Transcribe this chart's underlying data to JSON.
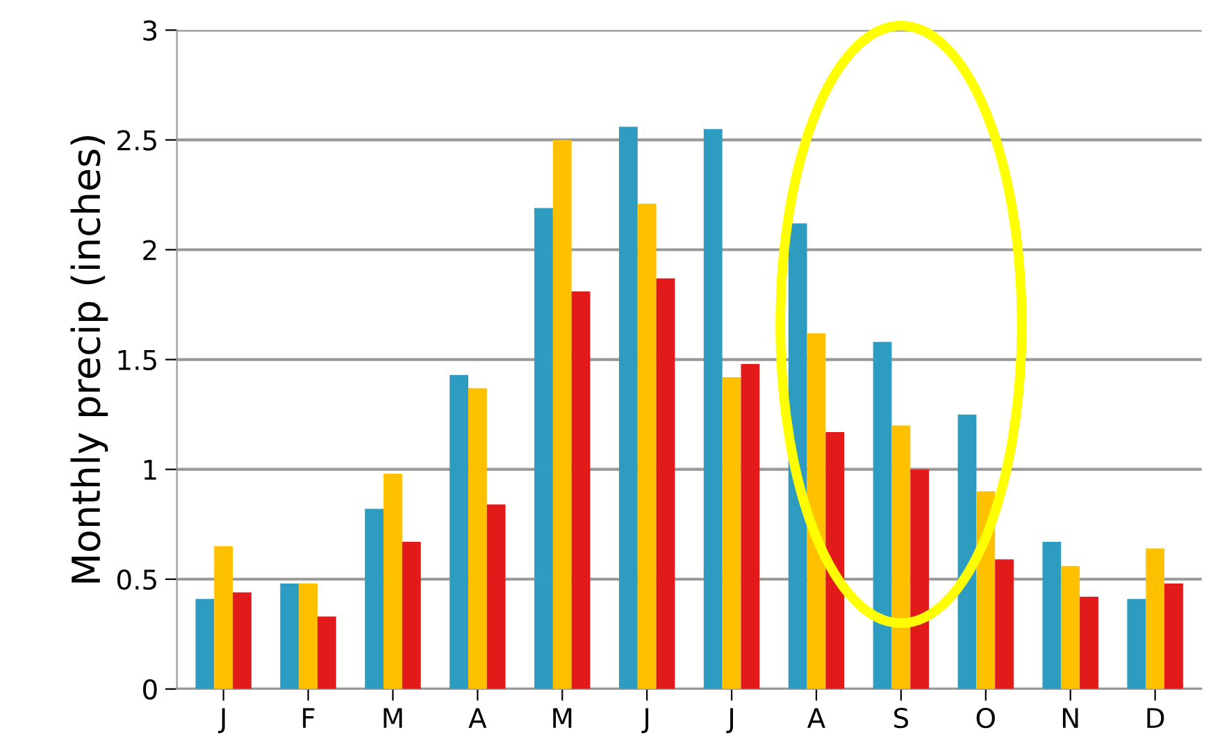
{
  "chart_data": {
    "type": "bar",
    "ylabel": "Monthly precip (inches)",
    "categories": [
      "J",
      "F",
      "M",
      "A",
      "M",
      "J",
      "J",
      "A",
      "S",
      "O",
      "N",
      "D"
    ],
    "series": [
      {
        "color": "#2e9bc0",
        "values": [
          0.41,
          0.48,
          0.82,
          1.43,
          2.19,
          2.56,
          2.55,
          2.12,
          1.58,
          1.25,
          0.67,
          0.41
        ]
      },
      {
        "color": "#ffc000",
        "values": [
          0.65,
          0.48,
          0.98,
          1.37,
          2.5,
          2.21,
          1.42,
          1.62,
          1.2,
          0.9,
          0.56,
          0.64
        ]
      },
      {
        "color": "#e21a1a",
        "values": [
          0.44,
          0.33,
          0.67,
          0.84,
          1.81,
          1.87,
          1.48,
          1.17,
          1.0,
          0.59,
          0.42,
          0.48
        ]
      }
    ],
    "ylim": [
      0,
      3
    ],
    "yticks": [
      0,
      0.5,
      1,
      1.5,
      2,
      2.5,
      3
    ],
    "grid": "y",
    "legend": false
  }
}
